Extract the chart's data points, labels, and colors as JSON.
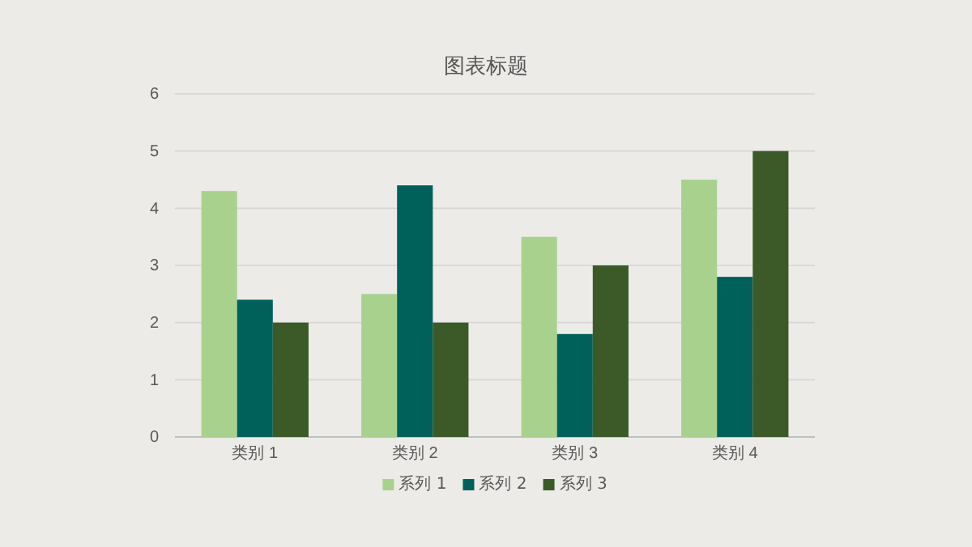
{
  "chart_data": {
    "type": "bar",
    "title": "图表标题",
    "categories": [
      "类别 1",
      "类别 2",
      "类别 3",
      "类别 4"
    ],
    "series": [
      {
        "name": "系列 1",
        "color": "#a9d18e",
        "values": [
          4.3,
          2.5,
          3.5,
          4.5
        ]
      },
      {
        "name": "系列 2",
        "color": "#00605a",
        "values": [
          2.4,
          4.4,
          1.8,
          2.8
        ]
      },
      {
        "name": "系列 3",
        "color": "#3b5a27",
        "values": [
          2,
          2,
          3,
          5
        ]
      }
    ],
    "ylim": [
      0,
      6
    ],
    "yticks": [
      0,
      1,
      2,
      3,
      4,
      5,
      6
    ],
    "grid": "y",
    "legend": "bottom"
  }
}
